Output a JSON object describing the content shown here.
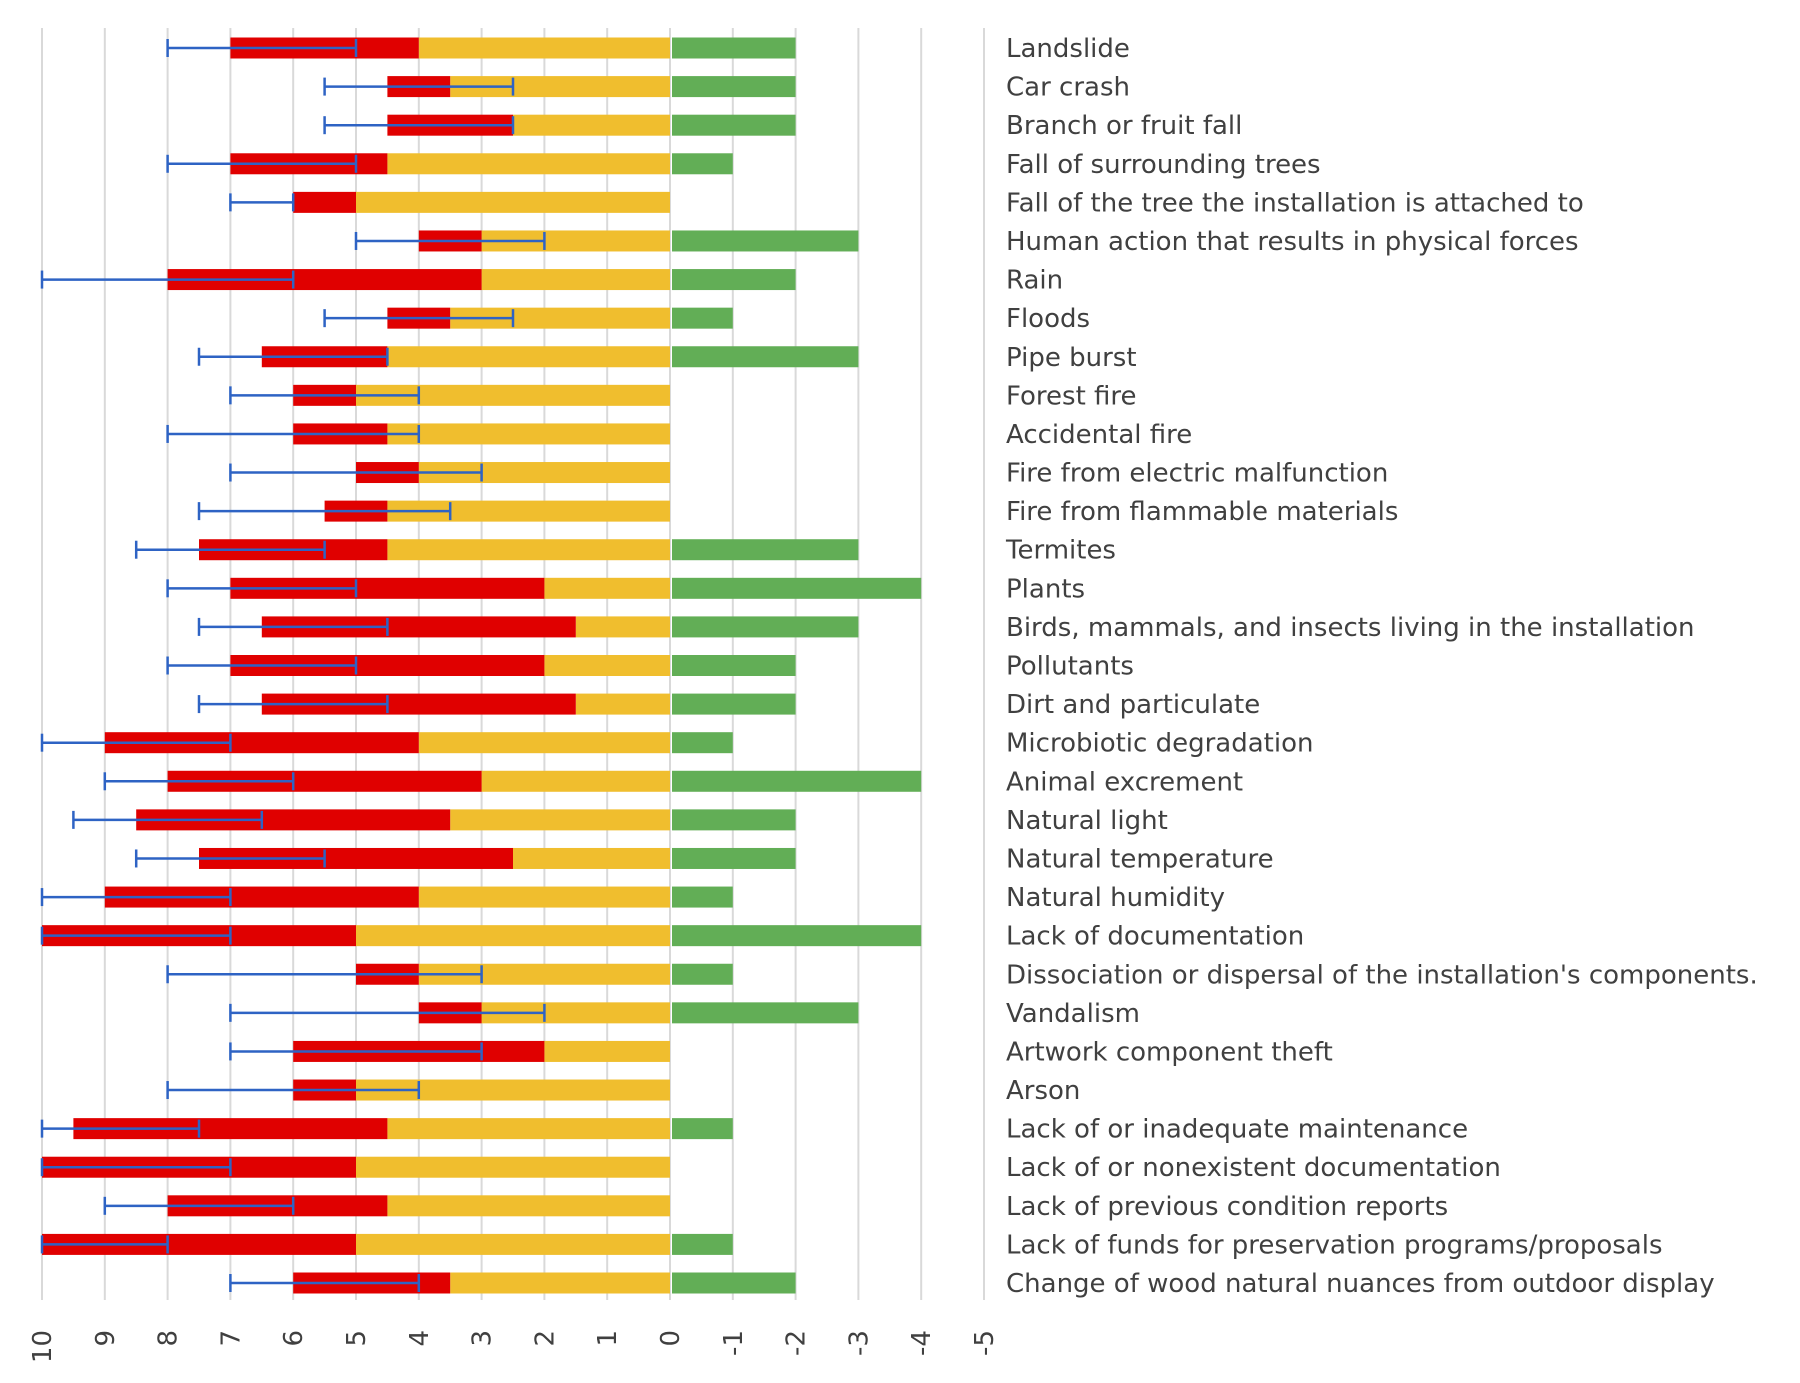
{
  "chart_data": {
    "type": "bar",
    "orientation": "horizontal-stacked",
    "title": "",
    "xlabel": "",
    "ylabel": "",
    "xlim": [
      10,
      -5
    ],
    "xticks": [
      "10",
      "9",
      "8",
      "7",
      "6",
      "5",
      "4",
      "3",
      "2",
      "1",
      "0",
      "-1",
      "-2",
      "-3",
      "-4",
      "-5"
    ],
    "grid": true,
    "legend": "none",
    "colors": {
      "yellow": "#F0BE2E",
      "red": "#E00000",
      "green": "#62AE56",
      "error": "#2E63C4",
      "grid": "#D9D9D9"
    },
    "series_note": "yellow spans 0 to yellow_end; red spans yellow_end to red_end; green spans 0 to -green; error bar spans err_low to err_high",
    "categories": [
      "Landslide",
      "Car crash",
      "Branch or fruit fall",
      "Fall of surrounding trees",
      "Fall of the tree the installation is attached to",
      "Human action that results in physical forces",
      "Rain",
      "Floods",
      "Pipe burst",
      "Forest fire",
      "Accidental fire",
      "Fire from electric malfunction",
      "Fire from flammable materials",
      "Termites",
      "Plants",
      "Birds, mammals, and insects living in the installation",
      "Pollutants",
      "Dirt and particulate",
      "Microbiotic degradation",
      "Animal excrement",
      "Natural light",
      "Natural temperature",
      "Natural humidity",
      "Lack of documentation",
      "Dissociation or dispersal of the installation's components.",
      "Vandalism",
      "Artwork component theft",
      "Arson",
      "Lack of or inadequate maintenance",
      "Lack of or nonexistent documentation",
      "Lack of previous condition reports",
      "Lack of funds for preservation programs/proposals",
      "Change of wood natural nuances from outdoor display"
    ],
    "series": [
      {
        "name": "yellow_end",
        "values": [
          4,
          3.5,
          2.5,
          4.5,
          5,
          3,
          3,
          3.5,
          4.5,
          5,
          4.5,
          4,
          4.5,
          4.5,
          2,
          1.5,
          2,
          1.5,
          4,
          3,
          3.5,
          2.5,
          4,
          5,
          4,
          3,
          2,
          5,
          4.5,
          5,
          4.5,
          5,
          3.5
        ]
      },
      {
        "name": "red_end",
        "values": [
          7,
          4.5,
          4.5,
          7,
          6,
          4,
          8,
          4.5,
          6.5,
          6,
          6,
          5,
          5.5,
          7.5,
          7,
          6.5,
          7,
          6.5,
          9,
          8,
          8.5,
          7.5,
          9,
          10,
          5,
          4,
          6,
          6,
          9.5,
          10,
          8,
          10,
          6
        ]
      },
      {
        "name": "green",
        "values": [
          2,
          2,
          2,
          1,
          0,
          3,
          2,
          1,
          3,
          0,
          0,
          0,
          0,
          3,
          4,
          3,
          2,
          2,
          1,
          4,
          2,
          2,
          1,
          4,
          1,
          3,
          0,
          0,
          1,
          0,
          0,
          1,
          2
        ]
      },
      {
        "name": "err_low",
        "values": [
          5,
          2.5,
          2.5,
          5,
          6,
          2,
          6,
          2.5,
          4.5,
          4,
          4,
          3,
          3.5,
          5.5,
          5,
          4.5,
          5,
          4.5,
          7,
          6,
          6.5,
          5.5,
          7,
          7,
          3,
          2,
          3,
          4,
          7.5,
          7,
          6,
          8,
          4
        ]
      },
      {
        "name": "err_high",
        "values": [
          8,
          5.5,
          5.5,
          8,
          7,
          5,
          10,
          5.5,
          7.5,
          7,
          8,
          7,
          7.5,
          8.5,
          8,
          7.5,
          8,
          7.5,
          10,
          9,
          9.5,
          8.5,
          10,
          10,
          8,
          7,
          7,
          8,
          10,
          10,
          9,
          10,
          7
        ]
      }
    ]
  }
}
